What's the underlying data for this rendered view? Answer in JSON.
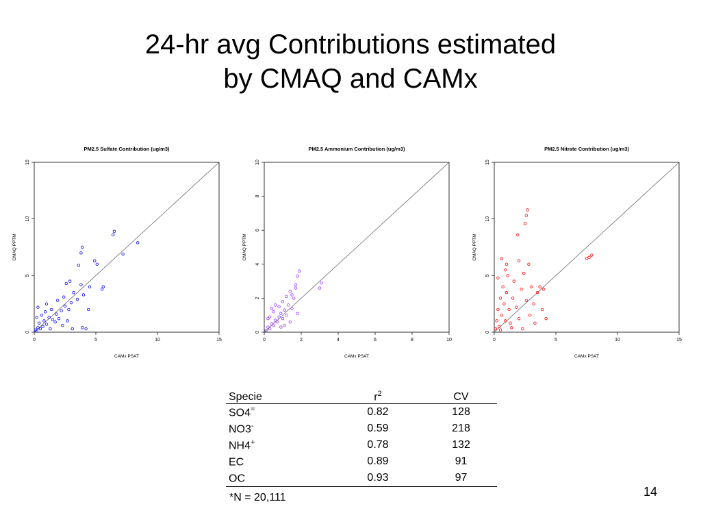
{
  "slide": {
    "title_line1": "24-hr avg Contributions estimated",
    "title_line2": "by CMAQ and CAMx",
    "page_number": "14"
  },
  "table": {
    "header": {
      "specie": "Specie",
      "r2": "r",
      "r2_sup": "2",
      "cv": "CV"
    },
    "rows": [
      {
        "name": "SO4",
        "sup": "=",
        "r2": "0.82",
        "cv": "128"
      },
      {
        "name": "NO3",
        "sup": "-",
        "r2": "0.59",
        "cv": "218"
      },
      {
        "name": "NH4",
        "sup": "+",
        "r2": "0.78",
        "cv": "132"
      },
      {
        "name": "EC",
        "sup": "",
        "r2": "0.89",
        "cv": "91"
      },
      {
        "name": "OC",
        "sup": "",
        "r2": "0.93",
        "cv": "97"
      }
    ],
    "footnote": "*N = 20,111"
  },
  "chart_data": [
    {
      "type": "scatter",
      "title": "PM2.5 Sulfate Contribution (ug/m3)",
      "xlabel": "CAMx PSAT",
      "ylabel": "CMAQ PPTM",
      "xlim": [
        0,
        15
      ],
      "ylim": [
        0,
        15
      ],
      "xticks": [
        0,
        5,
        10,
        15
      ],
      "yticks": [
        0,
        5,
        10,
        15
      ],
      "color": "#0000ff",
      "reference_line": "1:1",
      "points": [
        [
          0.1,
          0.2
        ],
        [
          0.2,
          0.1
        ],
        [
          0.3,
          0.4
        ],
        [
          0.5,
          0.3
        ],
        [
          0.4,
          0.8
        ],
        [
          0.7,
          0.5
        ],
        [
          0.8,
          1.0
        ],
        [
          1.0,
          0.7
        ],
        [
          1.2,
          1.3
        ],
        [
          0.6,
          1.5
        ],
        [
          1.5,
          1.1
        ],
        [
          1.8,
          1.6
        ],
        [
          2.0,
          1.2
        ],
        [
          1.4,
          2.0
        ],
        [
          2.2,
          1.9
        ],
        [
          2.5,
          2.3
        ],
        [
          1.0,
          2.5
        ],
        [
          0.9,
          1.8
        ],
        [
          1.7,
          0.9
        ],
        [
          2.8,
          2.0
        ],
        [
          3.0,
          2.6
        ],
        [
          2.4,
          3.1
        ],
        [
          3.2,
          3.5
        ],
        [
          3.5,
          2.9
        ],
        [
          4.0,
          3.3
        ],
        [
          3.8,
          4.2
        ],
        [
          4.5,
          4.0
        ],
        [
          2.9,
          4.5
        ],
        [
          3.6,
          5.9
        ],
        [
          3.8,
          7.0
        ],
        [
          3.9,
          7.5
        ],
        [
          4.9,
          6.3
        ],
        [
          5.1,
          6.0
        ],
        [
          6.4,
          8.6
        ],
        [
          6.5,
          8.9
        ],
        [
          7.2,
          6.9
        ],
        [
          8.4,
          7.9
        ],
        [
          5.5,
          3.8
        ],
        [
          4.2,
          0.3
        ],
        [
          3.9,
          0.4
        ],
        [
          3.1,
          0.3
        ],
        [
          2.7,
          1.0
        ],
        [
          0.3,
          2.2
        ],
        [
          0.2,
          1.3
        ],
        [
          1.3,
          0.3
        ],
        [
          2.3,
          0.6
        ],
        [
          1.9,
          2.8
        ],
        [
          2.6,
          4.3
        ],
        [
          4.4,
          2.0
        ],
        [
          5.6,
          4.0
        ]
      ]
    },
    {
      "type": "scatter",
      "title": "PM2.5 Ammonium Contribution (ug/m3)",
      "xlabel": "CAMx PSAT",
      "ylabel": "CMAQ PPTM",
      "xlim": [
        0,
        10
      ],
      "ylim": [
        0,
        10
      ],
      "xticks": [
        0,
        2,
        4,
        6,
        8,
        10
      ],
      "yticks": [
        0,
        2,
        4,
        6,
        8,
        10
      ],
      "color": "#9933ff",
      "reference_line": "1:1",
      "points": [
        [
          0.1,
          0.1
        ],
        [
          0.2,
          0.3
        ],
        [
          0.3,
          0.2
        ],
        [
          0.4,
          0.5
        ],
        [
          0.5,
          0.4
        ],
        [
          0.6,
          0.7
        ],
        [
          0.7,
          0.6
        ],
        [
          0.8,
          0.9
        ],
        [
          0.9,
          1.1
        ],
        [
          1.0,
          0.8
        ],
        [
          1.1,
          1.3
        ],
        [
          1.2,
          1.0
        ],
        [
          0.5,
          1.2
        ],
        [
          0.3,
          0.9
        ],
        [
          0.8,
          1.5
        ],
        [
          1.3,
          1.6
        ],
        [
          1.5,
          1.4
        ],
        [
          1.6,
          2.0
        ],
        [
          1.4,
          2.4
        ],
        [
          1.7,
          2.8
        ],
        [
          1.8,
          3.3
        ],
        [
          1.9,
          3.6
        ],
        [
          1.2,
          2.1
        ],
        [
          1.0,
          1.8
        ],
        [
          0.6,
          1.6
        ],
        [
          1.5,
          2.2
        ],
        [
          1.7,
          2.6
        ],
        [
          3.1,
          2.9
        ],
        [
          3.0,
          2.6
        ],
        [
          1.1,
          0.4
        ],
        [
          1.4,
          0.6
        ],
        [
          0.2,
          0.8
        ],
        [
          0.4,
          1.4
        ],
        [
          0.9,
          0.3
        ],
        [
          1.8,
          1.1
        ]
      ]
    },
    {
      "type": "scatter",
      "title": "PM2.5 Nitrate Contribution (ug/m3)",
      "xlabel": "CAMx PSAT",
      "ylabel": "CMAQ PPTM",
      "xlim": [
        0,
        15
      ],
      "ylim": [
        0,
        15
      ],
      "xticks": [
        0,
        5,
        10,
        15
      ],
      "yticks": [
        0,
        5,
        10,
        15
      ],
      "color": "#ff0000",
      "reference_line": "1:1",
      "points": [
        [
          0.1,
          0.3
        ],
        [
          0.2,
          1.0
        ],
        [
          0.3,
          2.0
        ],
        [
          0.4,
          0.5
        ],
        [
          0.5,
          3.0
        ],
        [
          0.6,
          1.5
        ],
        [
          0.7,
          4.0
        ],
        [
          0.8,
          2.5
        ],
        [
          0.9,
          1.0
        ],
        [
          1.0,
          3.5
        ],
        [
          1.1,
          5.0
        ],
        [
          1.2,
          2.0
        ],
        [
          1.3,
          0.8
        ],
        [
          0.6,
          6.5
        ],
        [
          0.9,
          5.5
        ],
        [
          1.5,
          3.0
        ],
        [
          1.6,
          4.5
        ],
        [
          1.8,
          2.2
        ],
        [
          2.0,
          1.2
        ],
        [
          2.2,
          3.8
        ],
        [
          2.4,
          5.2
        ],
        [
          2.6,
          2.8
        ],
        [
          2.5,
          9.6
        ],
        [
          2.6,
          10.3
        ],
        [
          2.7,
          10.8
        ],
        [
          1.9,
          8.6
        ],
        [
          3.0,
          4.0
        ],
        [
          3.2,
          2.5
        ],
        [
          3.5,
          3.5
        ],
        [
          3.7,
          4.0
        ],
        [
          4.0,
          3.8
        ],
        [
          4.2,
          1.2
        ],
        [
          3.9,
          2.0
        ],
        [
          2.8,
          6.0
        ],
        [
          2.0,
          6.3
        ],
        [
          7.5,
          6.5
        ],
        [
          7.9,
          6.8
        ],
        [
          7.7,
          6.6
        ],
        [
          0.5,
          0.2
        ],
        [
          1.4,
          0.4
        ],
        [
          2.3,
          0.3
        ],
        [
          3.3,
          0.8
        ],
        [
          0.3,
          4.8
        ],
        [
          1.0,
          6.0
        ],
        [
          2.9,
          1.5
        ]
      ]
    }
  ]
}
